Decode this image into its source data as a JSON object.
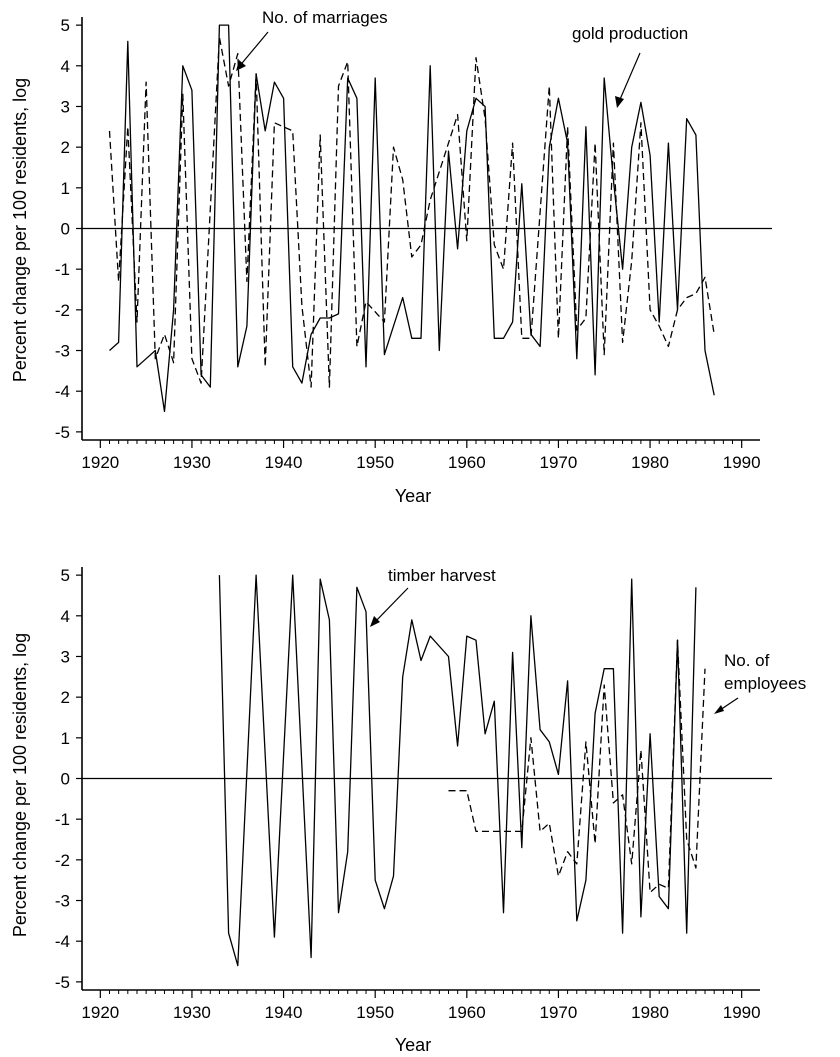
{
  "chart_data": [
    {
      "type": "line",
      "xlabel": "Year",
      "ylabel": "Percent change per 100 residents, log",
      "xlim": [
        1918,
        1992
      ],
      "ylim": [
        -5.2,
        5.2
      ],
      "x_ticks": [
        1920,
        1930,
        1940,
        1950,
        1960,
        1970,
        1980,
        1990
      ],
      "y_ticks": [
        5,
        4,
        3,
        2,
        1,
        0,
        -1,
        -2,
        -3,
        -4,
        -5
      ],
      "y_tick_labels": [
        "5",
        "4",
        "3",
        "2",
        "1",
        "0",
        "-1",
        "-2",
        "-3",
        "-4",
        "-5"
      ],
      "zero_line": true,
      "series": [
        {
          "name": "No. of marriages",
          "style": "solid",
          "points": [
            [
              1921,
              -3.0
            ],
            [
              1922,
              -2.8
            ],
            [
              1923,
              4.6
            ],
            [
              1924,
              -3.4
            ],
            [
              1925,
              -3.2
            ],
            [
              1926,
              -3.0
            ],
            [
              1927,
              -4.5
            ],
            [
              1928,
              -2.0
            ],
            [
              1929,
              4.0
            ],
            [
              1930,
              3.4
            ],
            [
              1931,
              -3.6
            ],
            [
              1932,
              -3.9
            ],
            [
              1933,
              5.0
            ],
            [
              1934,
              5.0
            ],
            [
              1935,
              -3.4
            ],
            [
              1936,
              -2.4
            ],
            [
              1937,
              3.8
            ],
            [
              1938,
              2.4
            ],
            [
              1939,
              3.6
            ],
            [
              1940,
              3.2
            ],
            [
              1941,
              -3.4
            ],
            [
              1942,
              -3.8
            ],
            [
              1943,
              -2.6
            ],
            [
              1944,
              -2.2
            ],
            [
              1945,
              -2.2
            ],
            [
              1946,
              -2.1
            ],
            [
              1947,
              3.7
            ],
            [
              1948,
              3.2
            ],
            [
              1949,
              -3.4
            ],
            [
              1950,
              3.7
            ],
            [
              1951,
              -3.1
            ],
            [
              1952,
              -2.4
            ],
            [
              1953,
              -1.7
            ],
            [
              1954,
              -2.7
            ],
            [
              1955,
              -2.7
            ],
            [
              1956,
              4.0
            ],
            [
              1957,
              -3.0
            ],
            [
              1958,
              1.9
            ],
            [
              1959,
              -0.5
            ],
            [
              1960,
              2.4
            ],
            [
              1961,
              3.2
            ],
            [
              1962,
              3.0
            ],
            [
              1963,
              -2.7
            ],
            [
              1964,
              -2.7
            ],
            [
              1965,
              -2.3
            ],
            [
              1966,
              1.1
            ],
            [
              1967,
              -2.6
            ],
            [
              1968,
              -2.9
            ],
            [
              1969,
              2.0
            ],
            [
              1970,
              3.2
            ],
            [
              1971,
              2.1
            ],
            [
              1972,
              -3.2
            ],
            [
              1973,
              2.5
            ],
            [
              1974,
              -3.6
            ],
            [
              1975,
              3.7
            ],
            [
              1976,
              1.2
            ],
            [
              1977,
              -1.0
            ],
            [
              1978,
              2.0
            ],
            [
              1979,
              3.1
            ],
            [
              1980,
              1.8
            ],
            [
              1981,
              -2.3
            ],
            [
              1982,
              2.1
            ],
            [
              1983,
              -2.0
            ],
            [
              1984,
              2.7
            ],
            [
              1985,
              2.3
            ],
            [
              1986,
              -3.0
            ],
            [
              1987,
              -4.1
            ]
          ]
        },
        {
          "name": "gold production",
          "style": "dashed",
          "points": [
            [
              1921,
              2.4
            ],
            [
              1922,
              -1.3
            ],
            [
              1923,
              2.5
            ],
            [
              1924,
              -2.3
            ],
            [
              1925,
              3.6
            ],
            [
              1926,
              -3.2
            ],
            [
              1927,
              -2.6
            ],
            [
              1928,
              -3.3
            ],
            [
              1929,
              3.3
            ],
            [
              1930,
              -3.2
            ],
            [
              1931,
              -3.8
            ],
            [
              1933,
              4.7
            ],
            [
              1934,
              3.5
            ],
            [
              1935,
              4.3
            ],
            [
              1936,
              -1.3
            ],
            [
              1937,
              3.8
            ],
            [
              1938,
              -3.4
            ],
            [
              1939,
              2.6
            ],
            [
              1941,
              2.4
            ],
            [
              1942,
              -1.9
            ],
            [
              1943,
              -3.9
            ],
            [
              1944,
              2.3
            ],
            [
              1945,
              -3.9
            ],
            [
              1946,
              3.5
            ],
            [
              1947,
              4.1
            ],
            [
              1948,
              -2.9
            ],
            [
              1949,
              -1.8
            ],
            [
              1951,
              -2.3
            ],
            [
              1952,
              2.0
            ],
            [
              1953,
              1.2
            ],
            [
              1954,
              -0.7
            ],
            [
              1955,
              -0.4
            ],
            [
              1956,
              0.7
            ],
            [
              1958,
              2.1
            ],
            [
              1959,
              2.8
            ],
            [
              1960,
              -0.3
            ],
            [
              1961,
              4.2
            ],
            [
              1962,
              2.7
            ],
            [
              1963,
              -0.4
            ],
            [
              1964,
              -1.0
            ],
            [
              1965,
              2.1
            ],
            [
              1966,
              -2.7
            ],
            [
              1967,
              -2.7
            ],
            [
              1969,
              3.5
            ],
            [
              1970,
              -2.7
            ],
            [
              1971,
              2.5
            ],
            [
              1972,
              -2.5
            ],
            [
              1973,
              -2.2
            ],
            [
              1974,
              2.1
            ],
            [
              1975,
              -3.1
            ],
            [
              1976,
              2.1
            ],
            [
              1977,
              -2.8
            ],
            [
              1978,
              -0.8
            ],
            [
              1979,
              2.6
            ],
            [
              1980,
              -2.0
            ],
            [
              1981,
              -2.4
            ],
            [
              1982,
              -2.9
            ],
            [
              1983,
              -2.0
            ],
            [
              1984,
              -1.7
            ],
            [
              1985,
              -1.6
            ],
            [
              1986,
              -1.2
            ],
            [
              1987,
              -2.6
            ]
          ]
        }
      ],
      "annotations": [
        {
          "text": "No. of marriages",
          "at": [
            1935.5,
            3.8
          ]
        },
        {
          "text": "gold production",
          "at": [
            1976.3,
            2.8
          ]
        }
      ]
    },
    {
      "type": "line",
      "xlabel": "Year",
      "ylabel": "Percent change per 100 residents, log",
      "xlim": [
        1918,
        1992
      ],
      "ylim": [
        -5.2,
        5.2
      ],
      "x_ticks": [
        1920,
        1930,
        1940,
        1950,
        1960,
        1970,
        1980,
        1990
      ],
      "y_ticks": [
        5,
        4,
        3,
        2,
        1,
        0,
        -1,
        -2,
        -3,
        -4,
        -5
      ],
      "y_tick_labels": [
        "5",
        "4",
        "3",
        "2",
        "1",
        "0",
        "-1",
        "-2",
        "-3",
        "-4",
        "-5"
      ],
      "zero_line": true,
      "series": [
        {
          "name": "timber harvest",
          "style": "solid",
          "points": [
            [
              1933,
              5.0
            ],
            [
              1934,
              -3.8
            ],
            [
              1935,
              -4.6
            ],
            [
              1937,
              5.0
            ],
            [
              1939,
              -3.9
            ],
            [
              1941,
              5.0
            ],
            [
              1943,
              -4.4
            ],
            [
              1944,
              4.9
            ],
            [
              1945,
              3.9
            ],
            [
              1946,
              -3.3
            ],
            [
              1947,
              -1.8
            ],
            [
              1948,
              4.7
            ],
            [
              1949,
              4.1
            ],
            [
              1950,
              -2.5
            ],
            [
              1951,
              -3.2
            ],
            [
              1952,
              -2.4
            ],
            [
              1953,
              2.5
            ],
            [
              1954,
              3.9
            ],
            [
              1955,
              2.9
            ],
            [
              1956,
              3.5
            ],
            [
              1958,
              3.0
            ],
            [
              1959,
              0.8
            ],
            [
              1960,
              3.5
            ],
            [
              1961,
              3.4
            ],
            [
              1962,
              1.1
            ],
            [
              1963,
              1.9
            ],
            [
              1964,
              -3.3
            ],
            [
              1965,
              3.1
            ],
            [
              1966,
              -1.7
            ],
            [
              1967,
              4.0
            ],
            [
              1968,
              1.2
            ],
            [
              1969,
              0.9
            ],
            [
              1970,
              0.1
            ],
            [
              1971,
              2.4
            ],
            [
              1972,
              -3.5
            ],
            [
              1973,
              -2.5
            ],
            [
              1974,
              1.6
            ],
            [
              1975,
              2.7
            ],
            [
              1976,
              2.7
            ],
            [
              1977,
              -3.8
            ],
            [
              1978,
              4.9
            ],
            [
              1979,
              -3.4
            ],
            [
              1980,
              1.1
            ],
            [
              1981,
              -2.9
            ],
            [
              1982,
              -3.2
            ],
            [
              1983,
              3.4
            ],
            [
              1984,
              -3.8
            ],
            [
              1985,
              4.7
            ]
          ]
        },
        {
          "name": "No. of employees",
          "style": "dashed",
          "points": [
            [
              1958,
              -0.3
            ],
            [
              1960,
              -0.3
            ],
            [
              1961,
              -1.3
            ],
            [
              1963,
              -1.3
            ],
            [
              1966,
              -1.3
            ],
            [
              1967,
              1.0
            ],
            [
              1968,
              -1.3
            ],
            [
              1969,
              -1.1
            ],
            [
              1970,
              -2.4
            ],
            [
              1971,
              -1.8
            ],
            [
              1972,
              -2.1
            ],
            [
              1973,
              0.9
            ],
            [
              1974,
              -1.6
            ],
            [
              1975,
              2.3
            ],
            [
              1976,
              -0.6
            ],
            [
              1977,
              -0.4
            ],
            [
              1978,
              -2.1
            ],
            [
              1979,
              0.7
            ],
            [
              1980,
              -2.8
            ],
            [
              1981,
              -2.6
            ],
            [
              1982,
              -2.7
            ],
            [
              1983,
              3.4
            ],
            [
              1984,
              -1.5
            ],
            [
              1985,
              -2.2
            ],
            [
              1986,
              2.7
            ]
          ]
        }
      ],
      "annotations": [
        {
          "text": "timber harvest",
          "at": [
            1949.5,
            4.4
          ]
        },
        {
          "text": "No. of",
          "at": [
            1986.2,
            1.1
          ]
        },
        {
          "text": "employees",
          "at": [
            1986.2,
            1.1
          ]
        }
      ]
    }
  ]
}
